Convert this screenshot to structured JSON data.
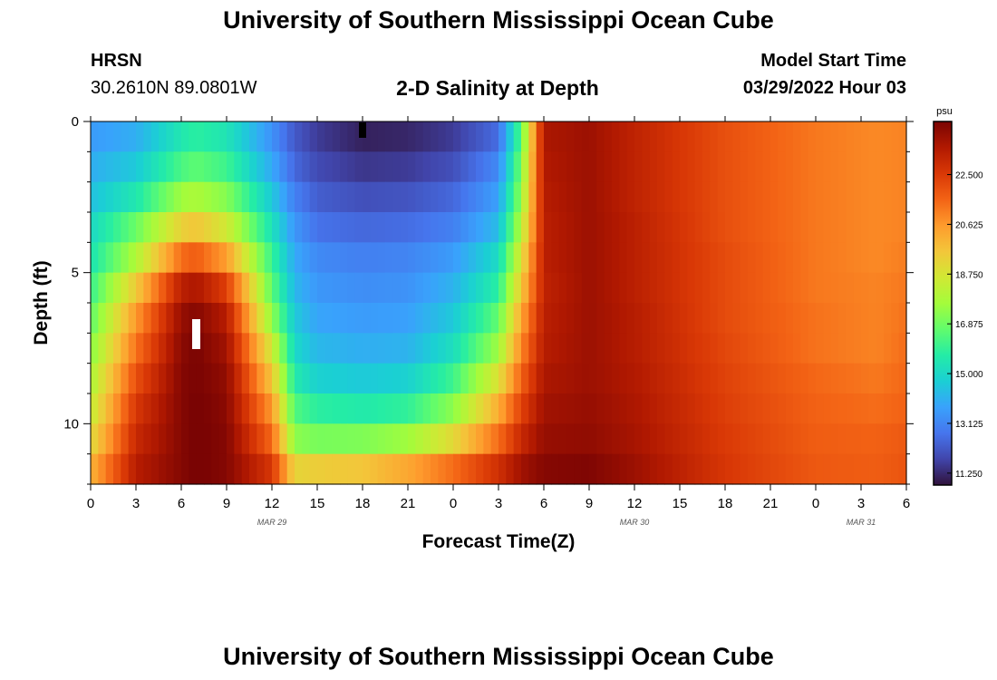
{
  "header": {
    "title_top": "University of Southern Mississippi Ocean Cube",
    "station": "HRSN",
    "coords": "30.2610N  89.0801W",
    "chart_title": "2-D Salinity at Depth",
    "model_label": "Model Start Time",
    "model_time": "03/29/2022 Hour 03",
    "title_bottom": "University of Southern Mississippi Ocean Cube"
  },
  "chart_data": {
    "type": "heatmap",
    "title": "2-D Salinity at Depth",
    "xlabel": "Forecast Time(Z)",
    "ylabel": "Depth (ft)",
    "x_range_hours": [
      0,
      54
    ],
    "y_range_ft": [
      0,
      12
    ],
    "x_tick_labels": [
      "0",
      "3",
      "6",
      "9",
      "12",
      "15",
      "18",
      "21",
      "0",
      "3",
      "6",
      "9",
      "12",
      "15",
      "18",
      "21",
      "0",
      "3",
      "6"
    ],
    "y_tick_labels": [
      "0",
      "5",
      "10"
    ],
    "date_labels": [
      {
        "label": "MAR 29",
        "hour": 12
      },
      {
        "label": "MAR 30",
        "hour": 36
      },
      {
        "label": "MAR 31",
        "hour": 51
      }
    ],
    "colorbar": {
      "unit": "psu",
      "min": 10.8,
      "max": 24.5,
      "tick_labels": [
        "22.500",
        "20.625",
        "18.750",
        "16.875",
        "15.000",
        "13.125",
        "11.250"
      ],
      "colors": [
        "#30123b",
        "#4145ab",
        "#4675ed",
        "#39a2fc",
        "#1bcfd4",
        "#24eca6",
        "#61fc6c",
        "#a4fc3b",
        "#d1e834",
        "#f3c63a",
        "#fe9b2d",
        "#f36315",
        "#d93806",
        "#b11901",
        "#7a0403"
      ]
    },
    "depth_levels_ft": [
      0.5,
      1.5,
      2.5,
      3.5,
      4.5,
      5.5,
      6.5,
      7.5,
      8.5,
      9.5,
      10.5,
      11.5
    ],
    "time_hours": [
      0,
      3,
      6,
      7,
      9,
      12,
      13.5,
      15,
      18,
      21,
      24,
      27,
      28.5,
      30,
      33,
      36,
      42,
      48,
      52,
      54
    ],
    "salinity_psu": [
      [
        13.6,
        14.0,
        15.5,
        15.8,
        15.4,
        13.4,
        12.2,
        11.6,
        11.1,
        11.2,
        11.6,
        12.6,
        16.5,
        23.6,
        23.9,
        23.2,
        22.0,
        21.2,
        20.9,
        21.0
      ],
      [
        14.0,
        14.6,
        16.3,
        16.6,
        16.1,
        13.9,
        12.5,
        11.9,
        11.5,
        11.6,
        12.0,
        13.2,
        17.0,
        23.5,
        23.9,
        23.2,
        22.0,
        21.2,
        20.9,
        21.0
      ],
      [
        14.4,
        15.5,
        17.6,
        17.8,
        17.2,
        14.6,
        13.0,
        12.3,
        12.0,
        12.1,
        12.5,
        13.7,
        17.4,
        23.4,
        23.9,
        23.2,
        22.0,
        21.2,
        20.9,
        21.0
      ],
      [
        15.0,
        16.8,
        19.3,
        19.6,
        18.6,
        15.3,
        13.5,
        12.7,
        12.5,
        12.6,
        13.0,
        14.3,
        18.0,
        23.3,
        23.9,
        23.3,
        22.0,
        21.2,
        20.9,
        21.0
      ],
      [
        15.4,
        17.9,
        21.4,
        21.7,
        20.5,
        16.0,
        13.9,
        13.2,
        13.0,
        13.1,
        13.6,
        15.1,
        18.8,
        23.3,
        23.9,
        23.3,
        22.1,
        21.2,
        20.9,
        21.1
      ],
      [
        16.0,
        19.5,
        23.3,
        23.6,
        22.4,
        16.6,
        14.2,
        13.5,
        13.3,
        13.4,
        14.1,
        15.8,
        19.5,
        23.2,
        23.9,
        23.3,
        22.1,
        21.2,
        21.0,
        21.2
      ],
      [
        16.6,
        20.6,
        24.0,
        24.3,
        23.4,
        17.4,
        14.6,
        13.8,
        13.6,
        13.7,
        14.6,
        16.7,
        20.3,
        23.3,
        23.9,
        23.4,
        22.1,
        21.3,
        21.0,
        21.3
      ],
      [
        17.2,
        21.3,
        24.2,
        24.5,
        23.8,
        18.6,
        15.0,
        14.2,
        14.0,
        14.1,
        15.2,
        17.6,
        20.9,
        23.4,
        23.9,
        23.4,
        22.2,
        21.3,
        21.0,
        21.4
      ],
      [
        17.8,
        22.0,
        24.3,
        24.5,
        24.1,
        19.6,
        15.6,
        14.8,
        14.6,
        14.8,
        16.1,
        18.9,
        21.6,
        23.6,
        23.9,
        23.5,
        22.3,
        21.5,
        21.2,
        21.5
      ],
      [
        18.3,
        22.6,
        24.3,
        24.6,
        24.2,
        20.6,
        16.4,
        15.8,
        15.6,
        15.9,
        17.3,
        20.2,
        22.3,
        23.8,
        24.0,
        23.6,
        22.4,
        21.6,
        21.4,
        21.6
      ],
      [
        19.0,
        23.0,
        24.3,
        24.6,
        24.3,
        21.5,
        17.3,
        17.0,
        17.1,
        17.6,
        19.1,
        21.4,
        23.0,
        24.0,
        24.1,
        23.7,
        22.5,
        21.7,
        21.6,
        21.8
      ],
      [
        20.0,
        23.4,
        24.3,
        24.6,
        24.3,
        22.6,
        19.2,
        19.4,
        19.6,
        20.3,
        21.4,
        22.8,
        23.8,
        24.3,
        24.4,
        23.9,
        22.6,
        21.8,
        21.7,
        21.9
      ]
    ]
  }
}
